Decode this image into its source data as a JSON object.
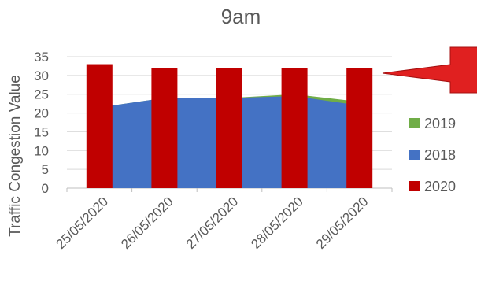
{
  "chart_data": {
    "type": "bar",
    "title": "9am",
    "ylabel": "Traffic Congestion Value",
    "xlabel": "",
    "ylim": [
      0,
      35
    ],
    "yticks": [
      0,
      5,
      10,
      15,
      20,
      25,
      30,
      35
    ],
    "categories": [
      "25/05/2020",
      "26/05/2020",
      "27/05/2020",
      "28/05/2020",
      "29/05/2020"
    ],
    "grid": true,
    "legend_position": "right",
    "series": [
      {
        "name": "2019",
        "type": "area",
        "color": "#70ad47",
        "values": [
          21.5,
          24,
          24,
          25,
          23
        ]
      },
      {
        "name": "2018",
        "type": "area",
        "color": "#4472c4",
        "values": [
          21.5,
          24,
          24,
          24.5,
          22
        ]
      },
      {
        "name": "2020",
        "type": "bar",
        "color": "#c00000",
        "values": [
          33,
          32,
          32,
          32,
          32
        ]
      }
    ],
    "legend": [
      {
        "name": "2019",
        "color": "#70ad47"
      },
      {
        "name": "2018",
        "color": "#4472c4"
      },
      {
        "name": "2020",
        "color": "#c00000"
      }
    ],
    "callout_color": "#e02020"
  }
}
